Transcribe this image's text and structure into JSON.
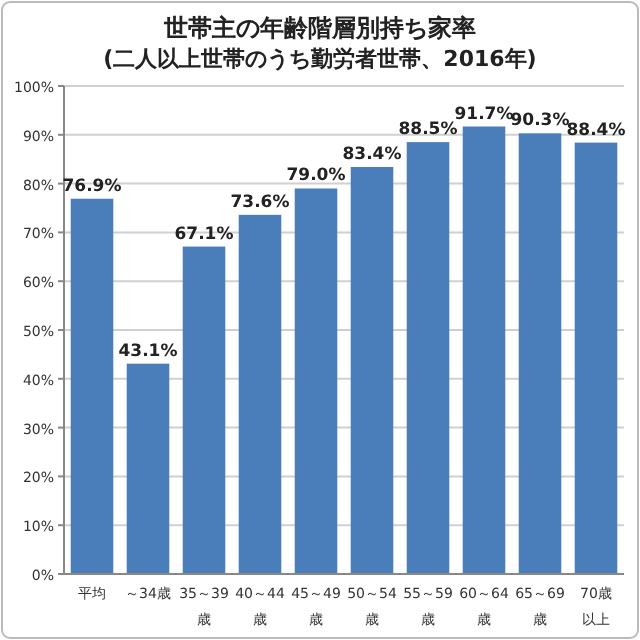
{
  "chart_data": {
    "type": "bar",
    "title": "世帯主の年齢階層別持ち家率",
    "subtitle": "(二人以上世帯のうち勤労者世帯、2016年)",
    "categories": [
      "平均",
      "～34歳",
      "35～39歳",
      "40～44歳",
      "45～49歳",
      "50～54歳",
      "55～59歳",
      "60～64歳",
      "65～69歳",
      "70歳以上"
    ],
    "values": [
      76.9,
      43.1,
      67.1,
      73.6,
      79.0,
      83.4,
      88.5,
      91.7,
      90.3,
      88.4
    ],
    "value_labels": [
      "76.9%",
      "43.1%",
      "67.1%",
      "73.6%",
      "79.0%",
      "83.4%",
      "88.5%",
      "91.7%",
      "90.3%",
      "88.4%"
    ],
    "color": "#4a7ebb",
    "ylim": [
      0,
      100
    ],
    "yticks": [
      {
        "value": 0,
        "label": "0%"
      },
      {
        "value": 10,
        "label": "10%"
      },
      {
        "value": 20,
        "label": "20%"
      },
      {
        "value": 30,
        "label": "30%"
      },
      {
        "value": 40,
        "label": "40%"
      },
      {
        "value": 50,
        "label": "50%"
      },
      {
        "value": 60,
        "label": "60%"
      },
      {
        "value": 70,
        "label": "70%"
      },
      {
        "value": 80,
        "label": "80%"
      },
      {
        "value": 90,
        "label": "90%"
      },
      {
        "value": 100,
        "label": "100%"
      }
    ],
    "grid": "y"
  }
}
